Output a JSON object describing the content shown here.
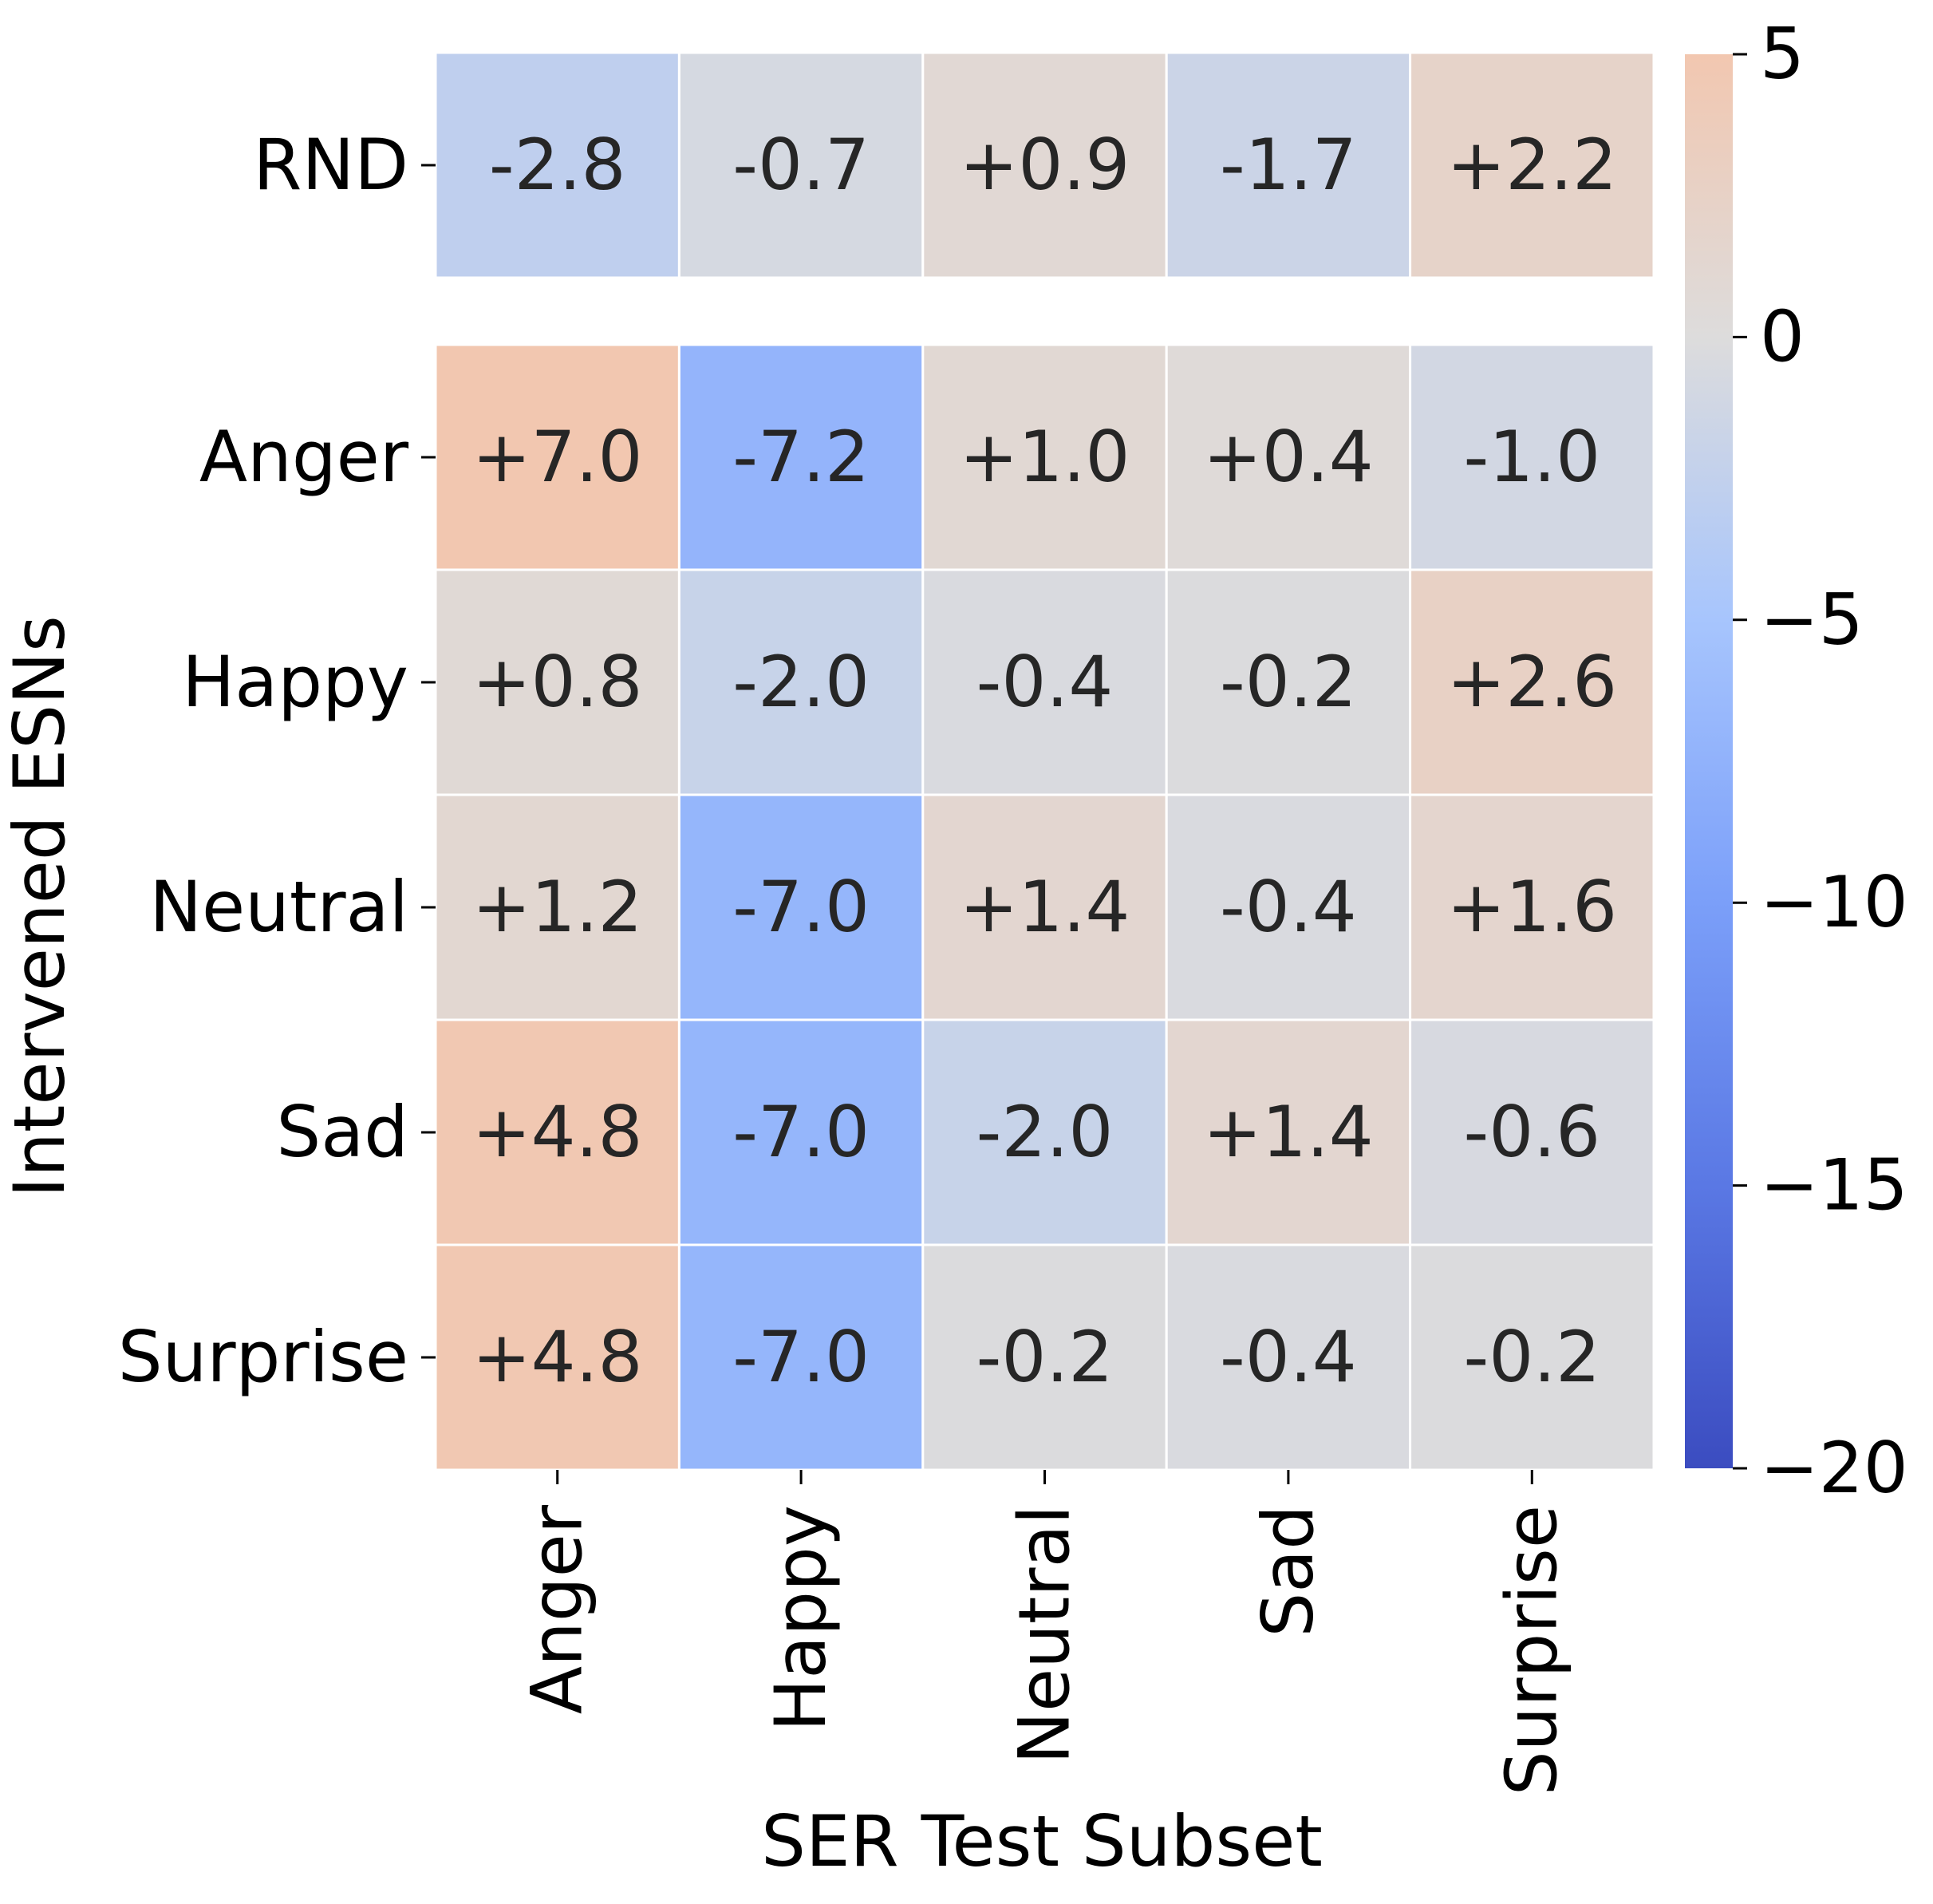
{
  "chart_data": {
    "type": "heatmap",
    "title": "",
    "xlabel": "SER Test Subset",
    "ylabel": "Intervened ESNs",
    "x_categories": [
      "Anger",
      "Happy",
      "Neutral",
      "Sad",
      "Surprise"
    ],
    "top_block": {
      "rows": [
        "RND"
      ],
      "values": [
        [
          -2.8,
          -0.7,
          0.9,
          -1.7,
          2.2
        ]
      ],
      "labels": [
        [
          "-2.8",
          "-0.7",
          "+0.9",
          "-1.7",
          "+2.2"
        ]
      ]
    },
    "main_block": {
      "rows": [
        "Anger",
        "Happy",
        "Neutral",
        "Sad",
        "Surprise"
      ],
      "values": [
        [
          7.0,
          -7.2,
          1.0,
          0.4,
          -1.0
        ],
        [
          0.8,
          -2.0,
          -0.4,
          -0.2,
          2.6
        ],
        [
          1.2,
          -7.0,
          1.4,
          -0.4,
          1.6
        ],
        [
          4.8,
          -7.0,
          -2.0,
          1.4,
          -0.6
        ],
        [
          4.8,
          -7.0,
          -0.2,
          -0.4,
          -0.2
        ]
      ],
      "labels": [
        [
          "+7.0",
          "-7.2",
          "+1.0",
          "+0.4",
          "-1.0"
        ],
        [
          "+0.8",
          "-2.0",
          "-0.4",
          "-0.2",
          "+2.6"
        ],
        [
          "+1.2",
          "-7.0",
          "+1.4",
          "-0.4",
          "+1.6"
        ],
        [
          "+4.8",
          "-7.0",
          "-2.0",
          "+1.4",
          "-0.6"
        ],
        [
          "+4.8",
          "-7.0",
          "-0.2",
          "-0.4",
          "-0.2"
        ]
      ]
    },
    "colorbar": {
      "colormap": "coolwarm",
      "vmin": -20,
      "vmax": 5,
      "center": 0,
      "ticks": [
        5,
        0,
        -5,
        -10,
        -15,
        -20
      ],
      "tick_labels": [
        "5",
        "0",
        "−5",
        "−10",
        "−15",
        "−20"
      ]
    }
  }
}
